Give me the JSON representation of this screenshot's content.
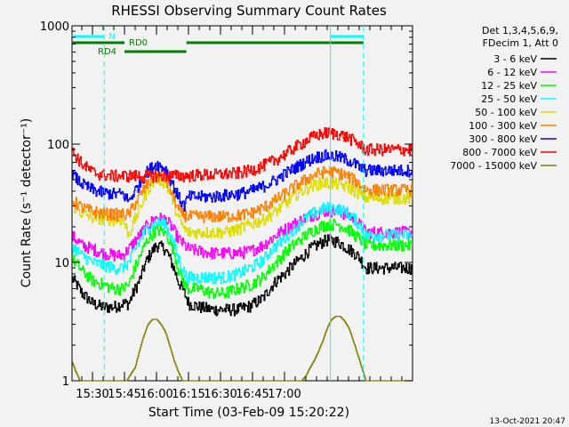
{
  "chart_data": {
    "type": "line",
    "title": "RHESSI Observing Summary Count Rates",
    "xlabel": "Start Time (03-Feb-09 15:20:22)",
    "ylabel": "Count Rate (s⁻¹ detector⁻¹)",
    "yscale": "log",
    "ylim": [
      1,
      1000
    ],
    "xlim_min": [
      20.4,
      180
    ],
    "xtick_labels": [
      "15:30",
      "15:45",
      "16:00",
      "16:15",
      "16:30",
      "16:45",
      "17:00"
    ],
    "xtick_min": [
      30,
      45,
      60,
      75,
      90,
      105,
      120
    ],
    "ytick_labels": [
      "1",
      "10",
      "100",
      "1000"
    ],
    "ytick_values": [
      1,
      10,
      100,
      1000
    ],
    "legend_header": [
      "Det 1,3,4,5,6,9,",
      "FDecim 1, Att 0"
    ],
    "legend_position": "right",
    "footer": "13-Oct-2021 20:47",
    "flags": [
      {
        "label": "N",
        "color": "#00ffff",
        "segments": [
          [
            20.4,
            35.5
          ],
          [
            141.5,
            157
          ]
        ]
      },
      {
        "label": "RD0",
        "color": "#007f00",
        "segments": [
          [
            20.4,
            45
          ],
          [
            74,
            157
          ]
        ]
      },
      {
        "label": "RD4",
        "color": "#007f00",
        "segments": [
          [
            45,
            74
          ]
        ]
      }
    ],
    "vlines": [
      {
        "x_min": 35.5,
        "style": "dashed",
        "color": "#00ffff"
      },
      {
        "x_min": 141.5,
        "style": "solid",
        "color": "#00ffff"
      },
      {
        "x_min": 157,
        "style": "dashed",
        "color": "#00ffff"
      }
    ],
    "series": [
      {
        "name": "3 - 6 keV",
        "color": "#000000",
        "x_min": [
          20,
          25,
          30,
          35,
          40,
          44,
          47,
          52,
          56,
          60,
          64,
          67,
          70,
          73,
          75,
          80,
          86,
          92,
          98,
          104,
          110,
          116,
          120,
          124,
          128,
          132,
          135,
          138,
          140,
          145,
          150,
          153,
          155,
          158
        ],
        "values": [
          7.5,
          5.5,
          4.5,
          4.2,
          4.2,
          4.5,
          4.5,
          7,
          11,
          14,
          13,
          10,
          7,
          5.5,
          4.5,
          4.2,
          4,
          4,
          4,
          4.3,
          5,
          7,
          8,
          9.5,
          11,
          13,
          14,
          15,
          15.5,
          15,
          13,
          12,
          11,
          9
        ]
      },
      {
        "name": "6 - 12 keV",
        "color": "#ff00ff",
        "x_min": [
          20,
          25,
          30,
          35,
          40,
          44,
          47,
          52,
          56,
          60,
          64,
          67,
          70,
          73,
          75,
          80,
          86,
          92,
          98,
          104,
          110,
          116,
          120,
          124,
          128,
          132,
          135,
          138,
          140,
          145,
          150,
          153,
          155,
          158
        ],
        "values": [
          17,
          14,
          13,
          12,
          11.5,
          11.5,
          13,
          17,
          21,
          24,
          23,
          20,
          16,
          14,
          13,
          12.5,
          12,
          12,
          12,
          12.5,
          14,
          17,
          19,
          21,
          23,
          25,
          26,
          27,
          27.5,
          27,
          25,
          23,
          21,
          18
        ]
      },
      {
        "name": "12 - 25 keV",
        "color": "#00ff00",
        "x_min": [
          20,
          25,
          30,
          35,
          40,
          44,
          47,
          52,
          56,
          60,
          64,
          67,
          70,
          73,
          75,
          80,
          86,
          92,
          98,
          104,
          110,
          116,
          120,
          124,
          128,
          132,
          135,
          138,
          140,
          145,
          150,
          153,
          155,
          158
        ],
        "values": [
          11,
          8.5,
          7,
          6.5,
          6,
          6,
          6.5,
          11,
          16,
          19,
          18,
          14,
          9,
          6.5,
          6,
          6,
          5.5,
          5.5,
          6,
          6.5,
          7.5,
          10,
          12,
          14,
          16,
          18,
          19.5,
          20.5,
          21,
          21,
          19,
          17,
          16,
          14
        ]
      },
      {
        "name": "25 - 50 keV",
        "color": "#00ffff",
        "x_min": [
          20,
          25,
          30,
          35,
          40,
          44,
          47,
          52,
          56,
          60,
          64,
          67,
          70,
          73,
          75,
          80,
          86,
          92,
          98,
          104,
          110,
          116,
          120,
          124,
          128,
          132,
          135,
          138,
          140,
          145,
          150,
          153,
          155,
          158
        ],
        "values": [
          14,
          11.5,
          10,
          9.5,
          9,
          9,
          10,
          15,
          20,
          22,
          21,
          16,
          11,
          8,
          7.5,
          7.5,
          7.5,
          7.5,
          8,
          9,
          10.5,
          14,
          16,
          19,
          22,
          25,
          27,
          28.5,
          29,
          28.5,
          26,
          23,
          21,
          17
        ]
      },
      {
        "name": "50 - 100 keV",
        "color": "#dddd00",
        "x_min": [
          20,
          25,
          30,
          35,
          40,
          44,
          47,
          52,
          56,
          60,
          64,
          67,
          70,
          73,
          75,
          80,
          86,
          92,
          98,
          104,
          110,
          116,
          120,
          124,
          128,
          132,
          135,
          138,
          140,
          145,
          150,
          153,
          155,
          158
        ],
        "values": [
          31,
          26,
          24,
          23.5,
          23,
          23,
          17,
          28,
          42,
          52,
          47,
          36,
          24,
          19,
          18,
          18,
          18,
          18,
          19,
          21,
          23,
          27,
          31,
          36,
          40,
          44,
          46,
          47,
          47,
          46,
          43,
          40,
          38,
          35
        ]
      },
      {
        "name": "100 - 300 keV",
        "color": "#ff7f00",
        "x_min": [
          20,
          25,
          30,
          35,
          40,
          44,
          47,
          52,
          56,
          60,
          64,
          67,
          70,
          73,
          75,
          80,
          86,
          92,
          98,
          104,
          110,
          116,
          120,
          124,
          128,
          132,
          135,
          138,
          140,
          145,
          150,
          153,
          155,
          158
        ],
        "values": [
          34,
          29,
          27,
          26,
          25.5,
          25.5,
          25.5,
          36,
          47,
          55,
          51,
          39,
          28,
          25,
          24.5,
          24.5,
          24.5,
          24.5,
          25,
          26,
          29,
          34,
          38,
          43,
          48,
          53,
          56,
          58,
          59,
          57.5,
          53,
          49,
          46,
          41
        ]
      },
      {
        "name": "300 - 800 keV",
        "color": "#0000ff",
        "x_min": [
          20,
          25,
          30,
          35,
          40,
          44,
          47,
          52,
          56,
          60,
          64,
          67,
          70,
          73,
          75,
          80,
          86,
          92,
          98,
          104,
          110,
          116,
          120,
          124,
          128,
          132,
          135,
          138,
          140,
          145,
          150,
          153,
          155,
          158
        ],
        "values": [
          56,
          46,
          41,
          39,
          38,
          38,
          33,
          46,
          60,
          68,
          62,
          48,
          36,
          30,
          36,
          36,
          36,
          37,
          38,
          40,
          44,
          50,
          56,
          62,
          68,
          74,
          78,
          80,
          80,
          78,
          73,
          68,
          64,
          60
        ]
      },
      {
        "name": "800 - 7000 keV",
        "color": "#ff0000",
        "x_min": [
          20,
          25,
          30,
          35,
          40,
          44,
          45,
          73,
          74,
          80,
          86,
          92,
          98,
          104,
          110,
          116,
          120,
          124,
          128,
          132,
          135,
          138,
          140,
          145,
          150,
          153,
          155,
          158
        ],
        "values": [
          88,
          68,
          58,
          55,
          54,
          54,
          54,
          54,
          54,
          55,
          55,
          56,
          57,
          60,
          66,
          74,
          82,
          92,
          102,
          112,
          119,
          123,
          125,
          122,
          113,
          105,
          99,
          90
        ]
      },
      {
        "name": "7000 - 15000 keV",
        "color": "#7f7f00",
        "x_min": [
          20,
          22,
          24,
          26,
          28,
          30,
          34,
          38,
          42,
          46,
          50,
          52,
          54,
          56,
          58,
          60,
          62,
          64,
          66,
          68,
          70,
          72,
          76,
          80,
          84,
          88,
          92,
          96,
          100,
          104,
          108,
          112,
          116,
          120,
          124,
          128,
          130,
          132,
          134,
          136,
          138,
          140,
          142,
          144,
          146,
          148,
          150,
          152,
          154,
          156,
          158
        ],
        "values": [
          1.5,
          1.2,
          1,
          1,
          1,
          1,
          1,
          1,
          1,
          1,
          1.3,
          1.8,
          2.4,
          3,
          3.3,
          3.3,
          3,
          2.6,
          2,
          1.5,
          1.2,
          1,
          1,
          1,
          1,
          1,
          1,
          1,
          1,
          1,
          1,
          1,
          1,
          1,
          1,
          1,
          1.1,
          1.3,
          1.5,
          1.8,
          2.2,
          2.8,
          3.3,
          3.5,
          3.5,
          3.2,
          2.8,
          2.2,
          1.7,
          1.3,
          1
        ]
      }
    ]
  }
}
